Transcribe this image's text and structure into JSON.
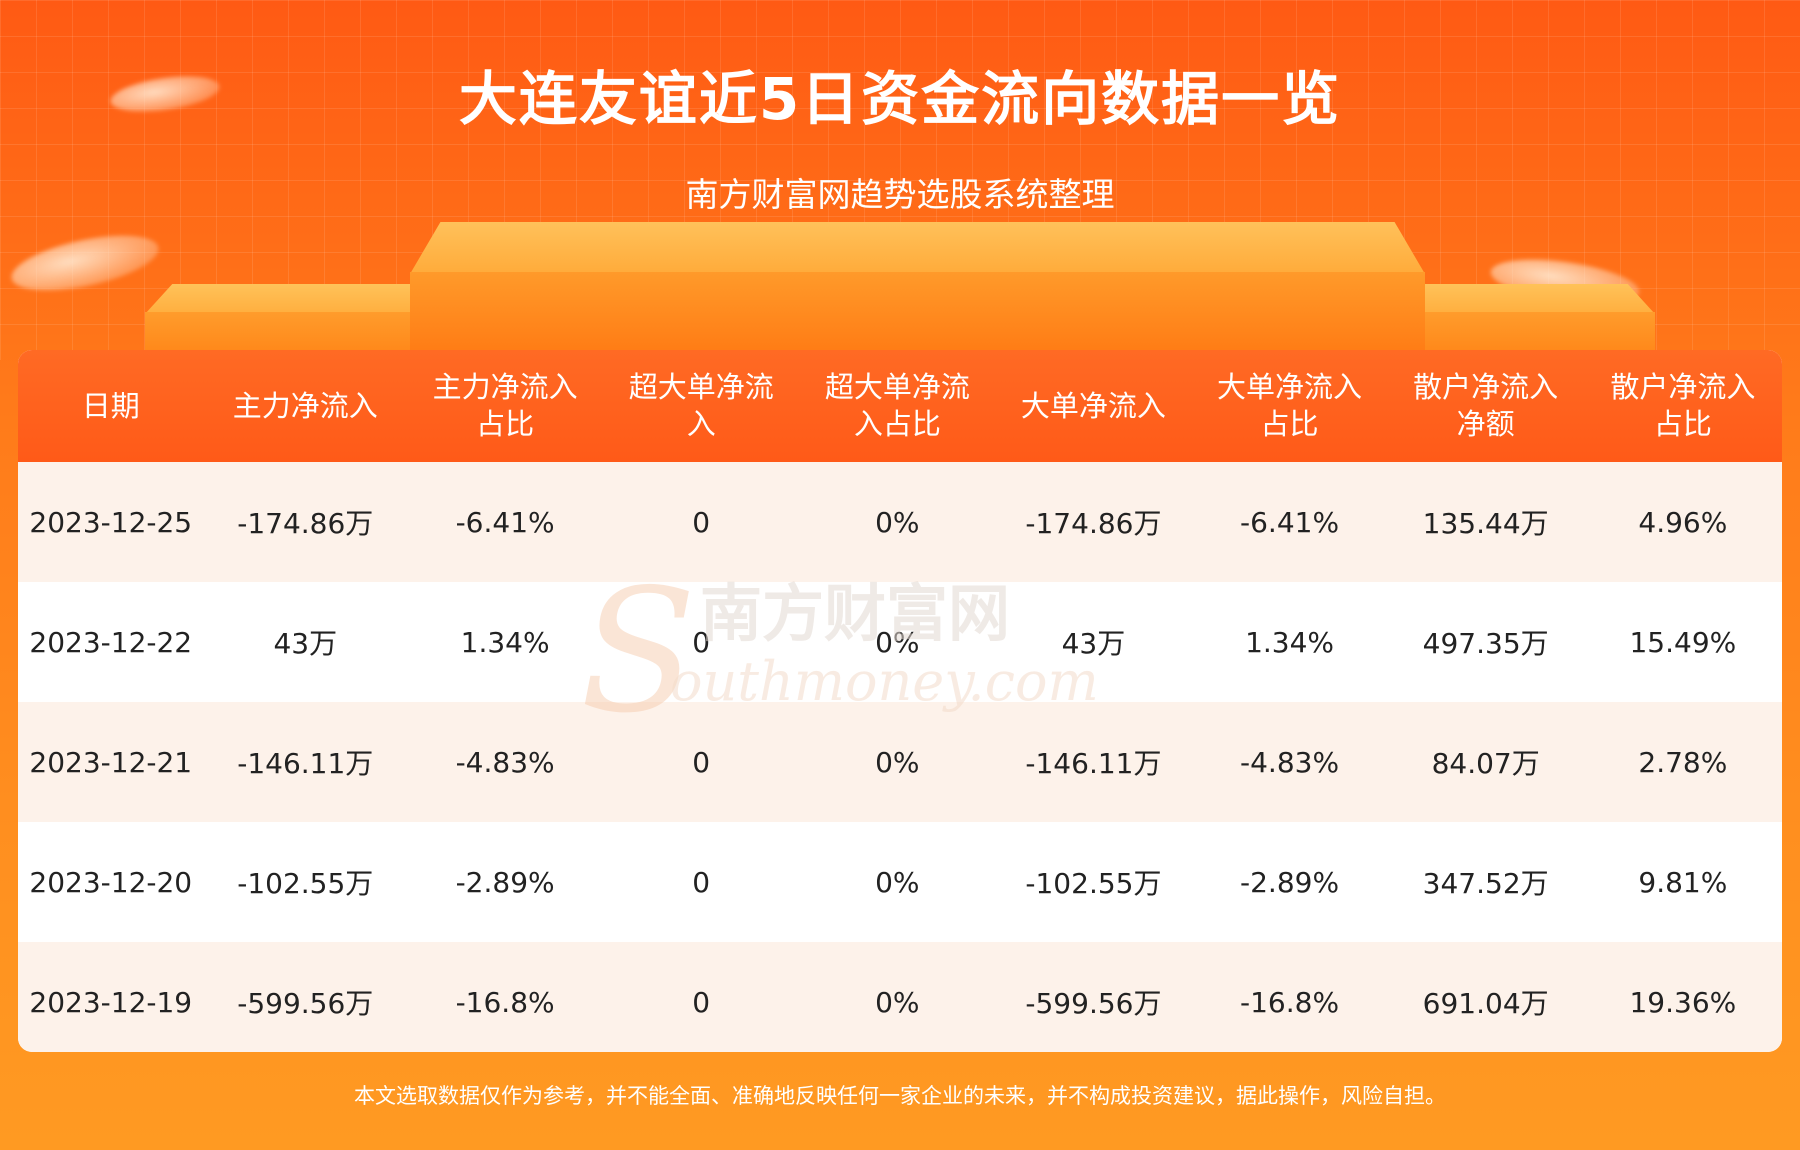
{
  "header": {
    "title": "大连友谊近5日资金流向数据一览",
    "subtitle": "南方财富网趋势选股系统整理"
  },
  "table": {
    "headers": [
      [
        "日期"
      ],
      [
        "主力净流入"
      ],
      [
        "主力净流入",
        "占比"
      ],
      [
        "超大单净流",
        "入"
      ],
      [
        "超大单净流",
        "入占比"
      ],
      [
        "大单净流入"
      ],
      [
        "大单净流入",
        "占比"
      ],
      [
        "散户净流入",
        "净额"
      ],
      [
        "散户净流入",
        "占比"
      ]
    ],
    "rows": [
      [
        "2023-12-25",
        "-174.86万",
        "-6.41%",
        "0",
        "0%",
        "-174.86万",
        "-6.41%",
        "135.44万",
        "4.96%"
      ],
      [
        "2023-12-22",
        "43万",
        "1.34%",
        "0",
        "0%",
        "43万",
        "1.34%",
        "497.35万",
        "15.49%"
      ],
      [
        "2023-12-21",
        "-146.11万",
        "-4.83%",
        "0",
        "0%",
        "-146.11万",
        "-4.83%",
        "84.07万",
        "2.78%"
      ],
      [
        "2023-12-20",
        "-102.55万",
        "-2.89%",
        "0",
        "0%",
        "-102.55万",
        "-2.89%",
        "347.52万",
        "9.81%"
      ],
      [
        "2023-12-19",
        "-599.56万",
        "-16.8%",
        "0",
        "0%",
        "-599.56万",
        "-16.8%",
        "691.04万",
        "19.36%"
      ]
    ]
  },
  "watermark": {
    "cn": "南方财富网",
    "en": "outhmoney.com"
  },
  "footer": {
    "disclaimer": "本文选取数据仅作为参考，并不能全面、准确地反映任何一家企业的未来，并不构成投资建议，据此操作，风险自担。"
  },
  "colors": {
    "header_bg": "#ff5a18",
    "row_alt": "#fdf2ea",
    "page_bg": "#ff7a1a"
  }
}
